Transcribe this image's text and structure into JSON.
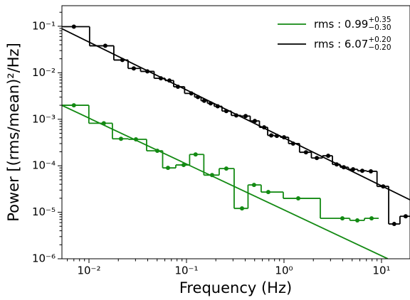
{
  "chart_data": {
    "type": "loglog-step",
    "xlabel": "Frequency (Hz)",
    "ylabel": "Power [(rms/mean)²/Hz]",
    "log_x": true,
    "log_y": true,
    "xlim": [
      0.00528,
      19.6
    ],
    "ylim": [
      1e-06,
      0.277
    ],
    "xticks": [
      {
        "value": 0.01,
        "label": "10⁻²"
      },
      {
        "value": 0.1,
        "label": "10⁻¹"
      },
      {
        "value": 1,
        "label": "10⁰"
      },
      {
        "value": 10,
        "label": "10¹"
      }
    ],
    "yticks": [
      {
        "value": 1e-06,
        "label": "10⁻⁶"
      },
      {
        "value": 1e-05,
        "label": "10⁻⁵"
      },
      {
        "value": 0.0001,
        "label": "10⁻⁴"
      },
      {
        "value": 0.001,
        "label": "10⁻³"
      },
      {
        "value": 0.01,
        "label": "10⁻²"
      },
      {
        "value": 0.1,
        "label": "10⁻¹"
      }
    ],
    "xminorticks": [
      0.006,
      0.007,
      0.008,
      0.009,
      0.02,
      0.03,
      0.04,
      0.05,
      0.06,
      0.07,
      0.08,
      0.09,
      0.2,
      0.3,
      0.4,
      0.5,
      0.6,
      0.7,
      0.8,
      0.9,
      2,
      3,
      4,
      5,
      6,
      7,
      8,
      9
    ],
    "yminorticks": [
      2e-06,
      3e-06,
      4e-06,
      5e-06,
      6e-06,
      7e-06,
      8e-06,
      9e-06,
      2e-05,
      3e-05,
      4e-05,
      5e-05,
      6e-05,
      7e-05,
      8e-05,
      9e-05,
      0.0002,
      0.0003,
      0.0004,
      0.0005,
      0.0006,
      0.0007,
      0.0008,
      0.0009,
      0.002,
      0.003,
      0.004,
      0.005,
      0.006,
      0.007,
      0.008,
      0.009,
      0.02,
      0.03,
      0.04,
      0.05,
      0.06,
      0.07,
      0.08,
      0.09,
      0.2
    ],
    "legend_loc": "upper right",
    "series": [
      {
        "name": "rms : 0.99",
        "name_sup": "+0.35",
        "name_sub": "−0.30",
        "color": "#138a13",
        "x": [
          0.007,
          0.0142,
          0.0213,
          0.0303,
          0.0502,
          0.0646,
          0.0935,
          0.124,
          0.183,
          0.256,
          0.371,
          0.493,
          0.69,
          1.4,
          3.97,
          5.65,
          7.91
        ],
        "values": [
          0.002,
          0.00082,
          0.00038,
          0.00037,
          0.00021,
          9e-05,
          0.000104,
          0.000175,
          6.3e-05,
          8.7e-05,
          1.21e-05,
          3.87e-05,
          2.72e-05,
          1.99e-05,
          7.4e-06,
          6.7e-06,
          7.4e-06
        ],
        "model": {
          "x": [
            0.00528,
            11.6
          ],
          "values": [
            0.00199,
            1e-06
          ]
        }
      },
      {
        "name": "rms : 6.07",
        "name_sup": "+0.20",
        "name_sub": "−0.20",
        "color": "#000000",
        "x": [
          0.007,
          0.0147,
          0.022,
          0.0288,
          0.0397,
          0.0546,
          0.0668,
          0.0817,
          0.112,
          0.131,
          0.152,
          0.177,
          0.209,
          0.256,
          0.324,
          0.404,
          0.502,
          0.625,
          0.74,
          0.845,
          1.0,
          1.24,
          1.68,
          2.17,
          2.84,
          3.47,
          4.1,
          5.11,
          6.35,
          7.78,
          10.4,
          13.5,
          17.7
        ],
        "values": [
          0.098,
          0.038,
          0.0188,
          0.0124,
          0.0107,
          0.0076,
          0.0068,
          0.005,
          0.0036,
          0.003,
          0.0025,
          0.0022,
          0.0019,
          0.0015,
          0.00121,
          0.00117,
          0.00092,
          0.00067,
          0.00045,
          0.00044,
          0.00041,
          0.0003,
          0.000195,
          0.000147,
          0.000164,
          0.000107,
          9.3e-05,
          8.4e-05,
          7.8e-05,
          7.6e-05,
          3.6e-05,
          5.6e-06,
          8.2e-06
        ],
        "model": {
          "x": [
            0.00528,
            19.6
          ],
          "values": [
            0.0885,
            1.85e-05
          ]
        }
      }
    ]
  }
}
